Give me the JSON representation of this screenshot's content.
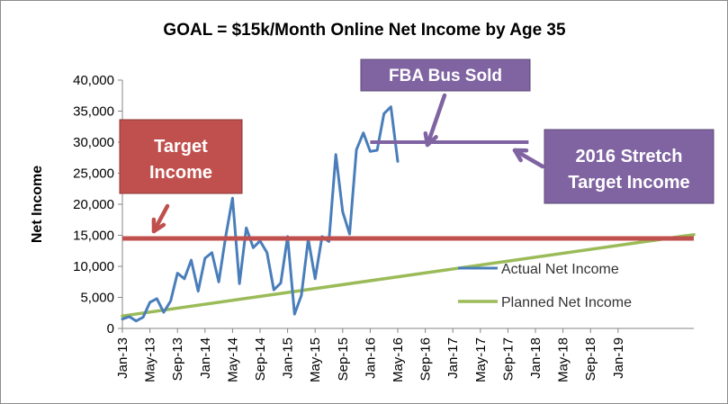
{
  "chart_data": {
    "type": "line",
    "title": "GOAL = $15k/Month Online Net Income by Age 35",
    "ylabel": "Net Income",
    "xlabel": "",
    "ylim": [
      0,
      40000
    ],
    "yticks": [
      0,
      5000,
      10000,
      15000,
      20000,
      25000,
      30000,
      35000,
      40000
    ],
    "ytick_labels": [
      "0",
      "5,000",
      "10,000",
      "15,000",
      "20,000",
      "25,000",
      "30,000",
      "35,000",
      "40,000"
    ],
    "xlim": [
      "2013-01",
      "2019-12"
    ],
    "xtick_labels": [
      "Jan-13",
      "May-13",
      "Sep-13",
      "Jan-14",
      "May-14",
      "Sep-14",
      "Jan-15",
      "May-15",
      "Sep-15",
      "Jan-16",
      "May-16",
      "Sep-16",
      "Jan-17",
      "May-17",
      "Sep-17",
      "Jan-18",
      "May-18",
      "Sep-18",
      "Jan-19"
    ],
    "grid": false,
    "legend_position": "right",
    "series": [
      {
        "name": "Actual Net Income",
        "color": "#4a7ebb",
        "x": [
          "2013-01",
          "2013-02",
          "2013-03",
          "2013-04",
          "2013-05",
          "2013-06",
          "2013-07",
          "2013-08",
          "2013-09",
          "2013-10",
          "2013-11",
          "2013-12",
          "2014-01",
          "2014-02",
          "2014-03",
          "2014-04",
          "2014-05",
          "2014-06",
          "2014-07",
          "2014-08",
          "2014-09",
          "2014-10",
          "2014-11",
          "2014-12",
          "2015-01",
          "2015-02",
          "2015-03",
          "2015-04",
          "2015-05",
          "2015-06",
          "2015-07",
          "2015-08",
          "2015-09",
          "2015-10",
          "2015-11",
          "2015-12",
          "2016-01",
          "2016-02",
          "2016-03",
          "2016-04",
          "2016-05"
        ],
        "values": [
          1500,
          1900,
          1200,
          1800,
          4200,
          4800,
          2600,
          4400,
          8900,
          8000,
          11000,
          6000,
          11300,
          12200,
          7500,
          14800,
          21000,
          7200,
          16200,
          13000,
          14100,
          12200,
          6200,
          7300,
          14800,
          2300,
          5300,
          14400,
          8000,
          14800,
          14000,
          28000,
          18800,
          15200,
          28800,
          31500,
          28500,
          28700,
          34600,
          35700,
          26900
        ]
      },
      {
        "name": "Planned Net Income",
        "color": "#9bbb59",
        "x": [
          "2013-01",
          "2019-12"
        ],
        "values": [
          2000,
          15100
        ]
      }
    ],
    "reference_lines": [
      {
        "label": "Target Income",
        "value": 14500,
        "color": "#c0504d"
      },
      {
        "label": "2016 Stretch Target Income",
        "value": 30000,
        "color": "#8064a2",
        "x_start": "2016-01",
        "x_end": "2017-12"
      }
    ],
    "annotations": [
      {
        "text": "Target Income",
        "style": "red-box",
        "position": "upper-left"
      },
      {
        "text": "FBA Bus Sold",
        "style": "purple-box",
        "position": "top-center"
      },
      {
        "text": "2016 Stretch Target Income",
        "style": "purple-box",
        "position": "right"
      }
    ],
    "colors": {
      "callout_red": "#c0504d",
      "callout_purple": "#8064a2",
      "axis": "#868686"
    }
  }
}
